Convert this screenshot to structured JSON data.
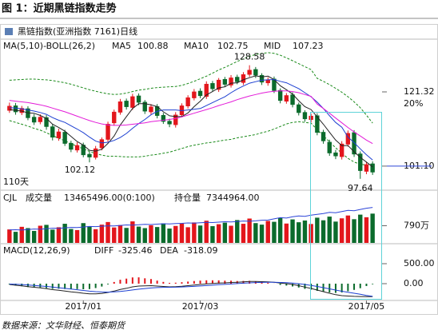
{
  "header": {
    "title": "图 1：近期黑链指数走势"
  },
  "chart_data": {
    "type": "candlestick",
    "title": "黑链指数(亚洲指数 7161)日线",
    "indicator_label": "MA(5,10)-BOLL(26,2)",
    "annotations": [
      "20%",
      "110天"
    ],
    "categories": [
      null,
      null,
      null,
      null,
      null,
      null,
      null,
      null,
      null,
      null,
      null,
      null,
      "2017/01",
      null,
      null,
      null,
      null,
      null,
      null,
      null,
      null,
      null,
      null,
      null,
      null,
      null,
      null,
      null,
      null,
      null,
      null,
      "2017/03",
      null,
      null,
      null,
      null,
      null,
      null,
      null,
      null,
      null,
      null,
      null,
      null,
      null,
      null,
      null,
      null,
      null,
      null,
      null,
      null,
      null,
      null,
      null,
      null,
      null,
      null,
      "2017/05",
      null
    ],
    "up_color": "#e3161c",
    "down_color": "#0b6b2c",
    "open": [
      116.2,
      117.6,
      115.6,
      116.8,
      114.5,
      113.1,
      114.4,
      111.9,
      108.7,
      110.4,
      107.4,
      105.4,
      106.9,
      104.4,
      103.4,
      106.0,
      108.3,
      112.8,
      115.7,
      118.9,
      117.0,
      120.3,
      118.6,
      115.8,
      117.4,
      115.0,
      113.4,
      112.3,
      115.0,
      117.4,
      119.6,
      121.6,
      120.0,
      123.7,
      121.9,
      124.8,
      123.1,
      125.4,
      123.8,
      126.0,
      127.5,
      125.9,
      123.7,
      124.9,
      121.8,
      118.7,
      120.6,
      117.9,
      115.8,
      113.7,
      114.9,
      110.4,
      107.7,
      104.8,
      103.6,
      107.0,
      110.3,
      104.5,
      99.6,
      101.8
    ],
    "high": [
      118.4,
      118.3,
      117.5,
      117.4,
      115.3,
      115.2,
      115.0,
      112.5,
      111.3,
      111.0,
      108.0,
      107.6,
      107.5,
      105.0,
      106.6,
      108.9,
      113.2,
      116.5,
      119.4,
      119.5,
      120.8,
      120.9,
      119.1,
      118.0,
      118.0,
      115.6,
      114.0,
      115.8,
      118.2,
      120.4,
      122.1,
      122.3,
      124.2,
      124.3,
      125.1,
      125.4,
      125.9,
      126.0,
      126.7,
      128.58,
      128.1,
      126.4,
      125.3,
      125.5,
      122.3,
      121.0,
      121.2,
      118.4,
      116.3,
      115.4,
      115.5,
      111.0,
      108.3,
      105.5,
      107.9,
      110.8,
      110.9,
      105.1,
      102.3,
      102.4
    ],
    "low": [
      115.6,
      115.1,
      115.0,
      113.6,
      112.3,
      112.5,
      111.0,
      108.1,
      108.0,
      106.6,
      104.9,
      104.8,
      103.5,
      102.12,
      102.9,
      105.4,
      107.7,
      112.1,
      115.1,
      116.5,
      116.4,
      117.7,
      115.3,
      115.1,
      114.1,
      112.6,
      111.7,
      111.6,
      114.4,
      116.8,
      119.0,
      119.6,
      119.4,
      121.4,
      121.3,
      122.7,
      122.5,
      123.4,
      123.2,
      125.4,
      125.1,
      123.2,
      123.0,
      121.0,
      118.2,
      118.1,
      117.1,
      114.9,
      113.2,
      113.0,
      109.5,
      107.2,
      103.9,
      103.0,
      102.9,
      106.4,
      103.6,
      97.64,
      98.9,
      98.7
    ],
    "close": [
      117.5,
      115.8,
      116.9,
      114.2,
      113.0,
      114.5,
      111.8,
      108.9,
      110.5,
      107.2,
      105.6,
      106.8,
      104.1,
      103.5,
      105.9,
      108.4,
      112.6,
      115.9,
      118.7,
      117.2,
      120.1,
      118.4,
      116.0,
      117.3,
      114.8,
      113.2,
      112.5,
      115.1,
      117.6,
      119.8,
      121.4,
      120.2,
      123.5,
      122.1,
      124.6,
      123.3,
      125.2,
      124.0,
      126.1,
      127.3,
      125.8,
      123.9,
      124.7,
      121.6,
      118.9,
      120.4,
      117.8,
      115.6,
      113.9,
      114.8,
      110.2,
      107.9,
      104.6,
      103.8,
      107.2,
      110.1,
      104.3,
      99.8,
      101.6,
      99.4
    ],
    "series": [
      {
        "name": "MA5",
        "color": "#222222",
        "values": [
          116.5,
          116.3,
          116.1,
          115.6,
          115.5,
          114.9,
          114.1,
          112.5,
          111.6,
          110.6,
          109.2,
          107.8,
          106.8,
          105.4,
          105.2,
          105.7,
          107.3,
          109.3,
          112.3,
          114.6,
          116.8,
          118.1,
          118.1,
          117.8,
          117.3,
          115.9,
          114.8,
          114.6,
          114.6,
          115.6,
          117.3,
          118.8,
          120.5,
          121.4,
          122.4,
          122.7,
          123.7,
          123.8,
          124.6,
          125.2,
          125.7,
          125.4,
          125.6,
          124.7,
          123.0,
          121.9,
          120.7,
          118.9,
          117.3,
          116.5,
          114.5,
          112.5,
          110.3,
          108.2,
          106.7,
          106.7,
          105.0,
          103.5,
          102.2,
          100.88
        ]
      },
      {
        "name": "MA10",
        "color": "#1c3fd1",
        "values": [
          117.0,
          116.9,
          116.7,
          116.4,
          116.1,
          115.7,
          115.2,
          114.3,
          113.6,
          113.0,
          112.1,
          111.2,
          110.2,
          109.0,
          107.9,
          107.4,
          107.6,
          108.1,
          108.9,
          110.0,
          111.4,
          112.7,
          113.8,
          115.1,
          116.0,
          116.4,
          116.4,
          116.4,
          116.2,
          116.4,
          116.6,
          116.8,
          117.6,
          118.4,
          119.2,
          120.0,
          121.1,
          122.1,
          122.9,
          123.7,
          124.1,
          124.5,
          124.6,
          124.7,
          124.2,
          123.8,
          123.0,
          122.2,
          121.1,
          120.0,
          118.5,
          116.8,
          114.8,
          113.0,
          111.7,
          109.0,
          107.5,
          105.8,
          104.2,
          102.75
        ]
      },
      {
        "name": "MID",
        "color": "#e31bd8",
        "values": [
          119.0,
          118.8,
          118.6,
          118.4,
          118.1,
          117.8,
          117.4,
          116.9,
          116.4,
          115.9,
          115.3,
          114.7,
          114.1,
          113.5,
          113.0,
          112.6,
          112.3,
          112.2,
          112.2,
          112.3,
          112.5,
          112.7,
          112.9,
          113.2,
          113.4,
          113.6,
          113.8,
          114.1,
          114.5,
          115.0,
          115.5,
          116.0,
          116.5,
          117.0,
          117.6,
          118.1,
          118.6,
          119.2,
          119.7,
          120.2,
          120.6,
          121.0,
          121.3,
          121.5,
          121.6,
          121.6,
          121.4,
          121.1,
          120.6,
          120.1,
          118.0,
          116.8,
          115.5,
          114.2,
          112.9,
          111.6,
          110.4,
          109.3,
          108.2,
          107.23
        ]
      }
    ],
    "bands": {
      "color": "#1a8a1a",
      "upper": [
        124.5,
        124.6,
        124.7,
        124.8,
        124.8,
        124.7,
        124.6,
        124.4,
        124.1,
        123.8,
        123.4,
        122.9,
        122.4,
        121.9,
        121.5,
        121.1,
        120.8,
        120.6,
        120.7,
        121.0,
        121.4,
        121.8,
        122.0,
        122.3,
        122.5,
        122.6,
        122.7,
        122.8,
        123.1,
        123.6,
        124.2,
        124.9,
        125.6,
        126.4,
        127.3,
        128.0,
        128.8,
        129.6,
        130.3,
        131.0,
        131.5,
        131.8,
        132.0,
        131.8,
        131.3,
        130.6,
        129.8,
        129.0,
        128.2,
        127.4,
        125.0,
        124.2,
        123.3,
        122.3,
        121.2,
        120.0,
        118.6,
        117.0,
        115.0,
        112.8
      ],
      "lower": [
        113.5,
        113.0,
        112.5,
        112.0,
        111.4,
        110.9,
        110.2,
        109.4,
        108.7,
        108.0,
        107.2,
        106.5,
        105.8,
        105.1,
        104.5,
        104.1,
        103.8,
        103.8,
        103.7,
        103.6,
        103.6,
        103.6,
        103.8,
        104.1,
        104.3,
        104.6,
        104.9,
        105.4,
        105.9,
        106.4,
        106.8,
        107.1,
        107.4,
        107.6,
        107.9,
        108.2,
        108.4,
        108.8,
        109.1,
        109.4,
        109.7,
        110.2,
        110.6,
        111.2,
        111.9,
        112.6,
        113.0,
        113.2,
        113.0,
        112.8,
        111.0,
        109.4,
        107.7,
        106.1,
        104.6,
        103.2,
        102.2,
        101.6,
        101.4,
        101.66
      ]
    },
    "ylim": [
      95.2,
      132.2
    ],
    "yticks": [
      121.32,
      {
        "value": 101.1,
        "label": "101.10"
      }
    ],
    "volume": {
      "title": "CJL",
      "name": "成交量",
      "value_label": "13465496.00(0:100)",
      "values": [
        6200000,
        5100000,
        7400000,
        6800000,
        5500000,
        7900000,
        8300000,
        6100000,
        7200000,
        8800000,
        6400000,
        5900000,
        9100000,
        7600000,
        6300000,
        8400000,
        9600000,
        7100000,
        8200000,
        6900000,
        9900000,
        7500000,
        6800000,
        8100000,
        7300000,
        9000000,
        6600000,
        7800000,
        8900000,
        7200000,
        9400000,
        8000000,
        10200000,
        7700000,
        8600000,
        9300000,
        7900000,
        10500000,
        8800000,
        11200000,
        9100000,
        8400000,
        10100000,
        9700000,
        11400000,
        8900000,
        10800000,
        9500000,
        10300000,
        8700000,
        11600000,
        10400000,
        12100000,
        9800000,
        11300000,
        12600000,
        10900000,
        13000000,
        11800000,
        13465496
      ],
      "ylim": [
        0,
        18000000
      ],
      "yticks": [
        {
          "value": 7900000,
          "label": "790万"
        }
      ]
    },
    "open_interest": {
      "name": "持仓量",
      "color": "#2c44d8",
      "value_label": "7344964.00",
      "values": [
        4600000,
        4620000,
        4580000,
        4650000,
        4700000,
        4680000,
        4740000,
        4800000,
        4780000,
        4850000,
        4900000,
        4880000,
        4950000,
        5020000,
        5000000,
        5050000,
        5100000,
        5080000,
        5150000,
        5200000,
        5180000,
        5220000,
        5280000,
        5250000,
        5300000,
        5350000,
        5320000,
        5380000,
        5400000,
        5450000,
        5420000,
        5480000,
        5520000,
        5500000,
        5550000,
        5600000,
        5580000,
        5620000,
        5680000,
        5650000,
        5700000,
        5780000,
        5800000,
        5950000,
        6100000,
        6050000,
        6200000,
        6300000,
        6250000,
        6400000,
        6500000,
        6600000,
        6750000,
        6700000,
        6850000,
        7000000,
        6950000,
        7100000,
        7250000,
        7344964
      ],
      "y2lim": [
        3000000,
        7800000
      ]
    },
    "macd": {
      "title": "MACD(12,26,9)",
      "series": [
        {
          "name": "DIFF",
          "color": "#222222",
          "value_label": "-325.46",
          "values": [
            -20,
            -40,
            -55,
            -75,
            -90,
            -105,
            -125,
            -150,
            -165,
            -185,
            -205,
            -220,
            -240,
            -255,
            -255,
            -245,
            -220,
            -185,
            -145,
            -115,
            -80,
            -60,
            -55,
            -50,
            -60,
            -70,
            -80,
            -75,
            -65,
            -50,
            -35,
            -20,
            -5,
            5,
            15,
            20,
            30,
            35,
            45,
            55,
            55,
            50,
            45,
            35,
            15,
            0,
            -20,
            -50,
            -85,
            -120,
            -160,
            -200,
            -240,
            -275,
            -300,
            -310,
            -318,
            -322,
            -325,
            -325.46
          ]
        },
        {
          "name": "DEA",
          "color": "#1c3fd1",
          "value_label": "-318.09",
          "values": [
            -10,
            -15,
            -23,
            -33,
            -45,
            -57,
            -70,
            -86,
            -102,
            -118,
            -135,
            -152,
            -170,
            -187,
            -200,
            -209,
            -211,
            -206,
            -194,
            -178,
            -158,
            -139,
            -122,
            -108,
            -98,
            -92,
            -90,
            -87,
            -83,
            -76,
            -68,
            -58,
            -47,
            -37,
            -26,
            -17,
            -7,
            2,
            11,
            20,
            27,
            32,
            34,
            34,
            30,
            24,
            15,
            -2,
            -20,
            -45,
            -70,
            -100,
            -130,
            -160,
            -190,
            -215,
            -240,
            -265,
            -295,
            -318.09
          ]
        }
      ],
      "histogram": [
        -20,
        -50,
        -64,
        -84,
        -90,
        -96,
        -110,
        -128,
        -126,
        -134,
        -140,
        -136,
        -140,
        -136,
        -110,
        -72,
        -18,
        42,
        98,
        126,
        156,
        158,
        134,
        116,
        76,
        44,
        20,
        24,
        36,
        52,
        66,
        76,
        84,
        84,
        82,
        74,
        74,
        66,
        68,
        70,
        56,
        36,
        22,
        2,
        -30,
        -48,
        -70,
        -96,
        -130,
        -150,
        -180,
        -200,
        -220,
        -230,
        -220,
        -190,
        -156,
        -114,
        -60,
        -14.74
      ],
      "ylim": [
        -400,
        740
      ],
      "yticks": [
        {
          "value": 500,
          "label": "500.00"
        },
        {
          "value": 0,
          "label": "0.00"
        }
      ]
    }
  },
  "source": "数据来源：文华财经、恒泰期货"
}
